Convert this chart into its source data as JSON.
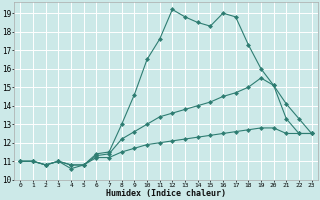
{
  "title": "",
  "xlabel": "Humidex (Indice chaleur)",
  "bg_color": "#cce9e8",
  "grid_color": "#ffffff",
  "line_color": "#2e7d72",
  "xlim": [
    -0.5,
    23.5
  ],
  "ylim": [
    10,
    19.6
  ],
  "yticks": [
    10,
    11,
    12,
    13,
    14,
    15,
    16,
    17,
    18,
    19
  ],
  "xticks": [
    0,
    1,
    2,
    3,
    4,
    5,
    6,
    7,
    8,
    9,
    10,
    11,
    12,
    13,
    14,
    15,
    16,
    17,
    18,
    19,
    20,
    21,
    22,
    23
  ],
  "series": [
    {
      "x": [
        0,
        1,
        2,
        3,
        4,
        5,
        6,
        7,
        8,
        9,
        10,
        11,
        12,
        13,
        14,
        15,
        16,
        17,
        18,
        19,
        20,
        21,
        22,
        23
      ],
      "y": [
        11,
        11,
        10.8,
        11,
        10.6,
        10.8,
        11.4,
        11.5,
        13.0,
        14.6,
        16.5,
        17.6,
        19.2,
        18.8,
        18.5,
        18.3,
        19.0,
        18.8,
        17.3,
        16.0,
        15.1,
        14.1,
        13.3,
        12.5
      ]
    },
    {
      "x": [
        0,
        1,
        2,
        3,
        4,
        5,
        6,
        7,
        8,
        9,
        10,
        11,
        12,
        13,
        14,
        15,
        16,
        17,
        18,
        19,
        20,
        21,
        22,
        23
      ],
      "y": [
        11,
        11,
        10.8,
        11,
        10.8,
        10.8,
        11.3,
        11.4,
        12.2,
        12.6,
        13.0,
        13.4,
        13.6,
        13.8,
        14.0,
        14.2,
        14.5,
        14.7,
        15.0,
        15.5,
        15.1,
        13.3,
        12.5,
        12.5
      ]
    },
    {
      "x": [
        0,
        1,
        2,
        3,
        4,
        5,
        6,
        7,
        8,
        9,
        10,
        11,
        12,
        13,
        14,
        15,
        16,
        17,
        18,
        19,
        20,
        21,
        22,
        23
      ],
      "y": [
        11,
        11,
        10.8,
        11,
        10.8,
        10.8,
        11.2,
        11.2,
        11.5,
        11.7,
        11.9,
        12.0,
        12.1,
        12.2,
        12.3,
        12.4,
        12.5,
        12.6,
        12.7,
        12.8,
        12.8,
        12.5,
        12.5,
        12.5
      ]
    }
  ]
}
